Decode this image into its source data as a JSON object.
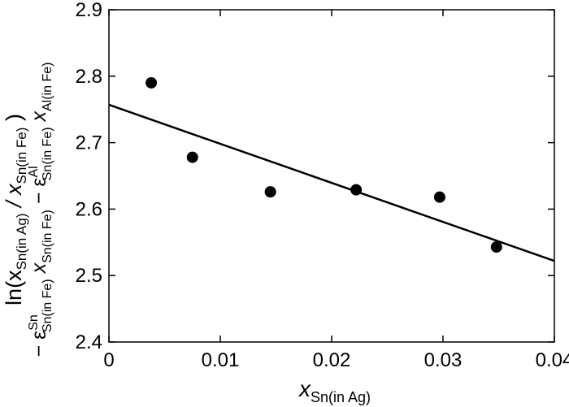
{
  "chart_data": {
    "type": "scatter",
    "title": "",
    "xlabel": {
      "main": "x",
      "sub": "Sn(in Ag)"
    },
    "ylabel": {
      "line1": {
        "p1": "ln(x",
        "p1_sub": "Sn(in Ag)",
        "p2": " / x",
        "p2_sub": "Sn(in Fe)",
        "p3": " )"
      },
      "line2": {
        "p1": "− ε",
        "p1_sup": "Sn",
        "p1_sub": "Sn(in Fe)",
        "p2": " x",
        "p2_sub": "Sn(in Fe)",
        "p3": " − ε",
        "p3_sup": "Al",
        "p3_sub": "Sn(in Fe)",
        "p4": " x",
        "p4_sub": "Al(in Fe)"
      }
    },
    "xlim": [
      0,
      0.04
    ],
    "ylim": [
      2.4,
      2.9
    ],
    "xticks": [
      0,
      0.01,
      0.02,
      0.03,
      0.04
    ],
    "xtick_labels": [
      "0",
      "0.01",
      "0.02",
      "0.03",
      "0.04"
    ],
    "yticks": [
      2.4,
      2.5,
      2.6,
      2.7,
      2.8,
      2.9
    ],
    "ytick_labels": [
      "2.4",
      "2.5",
      "2.6",
      "2.7",
      "2.8",
      "2.9"
    ],
    "grid": false,
    "points": [
      {
        "x": 0.0038,
        "y": 2.79
      },
      {
        "x": 0.0075,
        "y": 2.678
      },
      {
        "x": 0.0145,
        "y": 2.626
      },
      {
        "x": 0.0222,
        "y": 2.629
      },
      {
        "x": 0.0297,
        "y": 2.618
      },
      {
        "x": 0.0348,
        "y": 2.543
      }
    ],
    "fit_line": {
      "x": [
        0,
        0.04
      ],
      "y": [
        2.757,
        2.522
      ]
    },
    "colors": {
      "marker": "#000000",
      "line": "#000000",
      "axes": "#000000"
    }
  }
}
